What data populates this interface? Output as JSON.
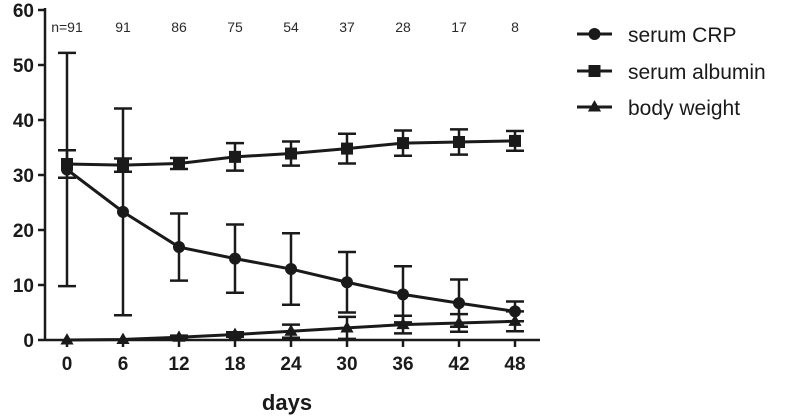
{
  "chart_data": {
    "type": "line",
    "xlabel": "days",
    "ylabel": "",
    "x": [
      0,
      6,
      12,
      18,
      24,
      30,
      36,
      42,
      48
    ],
    "xticks": [
      "0",
      "6",
      "12",
      "18",
      "24",
      "30",
      "36",
      "42",
      "48"
    ],
    "ylim": [
      0,
      60
    ],
    "yticks": [
      "0",
      "10",
      "20",
      "30",
      "40",
      "50",
      "60"
    ],
    "n_labels": [
      "n=91",
      "91",
      "86",
      "75",
      "54",
      "37",
      "28",
      "17",
      "8"
    ],
    "legend_position": "top-right",
    "series": [
      {
        "name": "serum CRP",
        "marker": "circle",
        "values": [
          31,
          23.3,
          16.9,
          14.8,
          12.9,
          10.5,
          8.3,
          6.7,
          5.2
        ],
        "error": [
          21.2,
          18.8,
          6.1,
          6.2,
          6.5,
          5.5,
          5.1,
          4.3,
          1.8
        ]
      },
      {
        "name": "serum albumin",
        "marker": "square",
        "values": [
          32,
          31.8,
          32.1,
          33.3,
          33.9,
          34.8,
          35.8,
          36.0,
          36.2
        ],
        "error": [
          2.5,
          1.2,
          1.0,
          2.5,
          2.2,
          2.7,
          2.3,
          2.3,
          1.8
        ]
      },
      {
        "name": "body weight",
        "marker": "triangle",
        "values": [
          0,
          0.1,
          0.5,
          1.0,
          1.6,
          2.2,
          2.8,
          3.1,
          3.4
        ],
        "error": [
          0,
          0,
          0.3,
          0.4,
          1.2,
          2.0,
          1.6,
          1.6,
          1.8
        ]
      }
    ]
  }
}
